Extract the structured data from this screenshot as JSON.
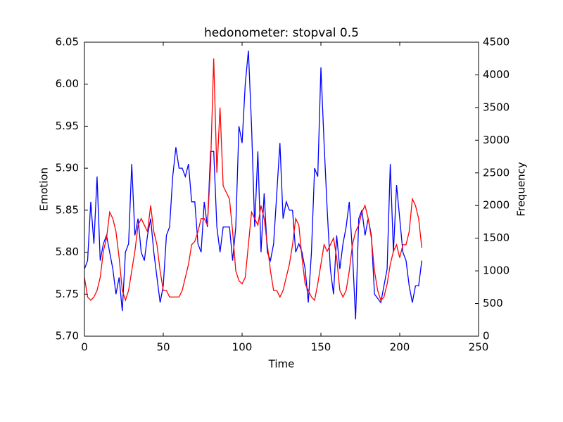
{
  "chart_data": {
    "type": "line",
    "title": "hedonometer: stopval 0.5",
    "x_label": "Time",
    "y_label": "Emotion",
    "y2_label": "Frequency",
    "x": [
      0,
      2,
      4,
      6,
      8,
      10,
      12,
      14,
      16,
      18,
      20,
      22,
      24,
      26,
      28,
      30,
      32,
      34,
      36,
      38,
      40,
      42,
      44,
      46,
      48,
      50,
      52,
      54,
      56,
      58,
      60,
      62,
      64,
      66,
      68,
      70,
      72,
      74,
      76,
      78,
      80,
      82,
      84,
      86,
      88,
      90,
      92,
      94,
      96,
      98,
      100,
      102,
      104,
      106,
      108,
      110,
      112,
      114,
      116,
      118,
      120,
      122,
      124,
      126,
      128,
      130,
      132,
      134,
      136,
      138,
      140,
      142,
      144,
      146,
      148,
      150,
      152,
      154,
      156,
      158,
      160,
      162,
      164,
      166,
      168,
      170,
      172,
      174,
      176,
      178,
      180,
      182,
      184,
      186,
      188,
      190,
      192,
      194,
      196,
      198,
      200,
      202,
      204,
      206,
      208,
      210,
      212,
      214
    ],
    "series": [
      {
        "color": "#0000ff",
        "values": [
          5.78,
          5.79,
          5.86,
          5.81,
          5.89,
          5.79,
          5.81,
          5.82,
          5.8,
          5.78,
          5.75,
          5.77,
          5.73,
          5.8,
          5.81,
          5.905,
          5.82,
          5.84,
          5.8,
          5.79,
          5.82,
          5.84,
          5.8,
          5.77,
          5.74,
          5.76,
          5.82,
          5.83,
          5.89,
          5.925,
          5.9,
          5.9,
          5.89,
          5.905,
          5.86,
          5.86,
          5.81,
          5.8,
          5.86,
          5.83,
          5.92,
          5.92,
          5.83,
          5.8,
          5.83,
          5.83,
          5.83,
          5.79,
          5.83,
          5.95,
          5.93,
          6.0,
          6.04,
          5.95,
          5.83,
          5.92,
          5.8,
          5.87,
          5.8,
          5.79,
          5.81,
          5.87,
          5.93,
          5.84,
          5.86,
          5.85,
          5.85,
          5.8,
          5.81,
          5.8,
          5.78,
          5.74,
          5.8,
          5.9,
          5.89,
          6.02,
          5.93,
          5.85,
          5.78,
          5.75,
          5.82,
          5.78,
          5.81,
          5.83,
          5.86,
          5.8,
          5.72,
          5.84,
          5.85,
          5.82,
          5.84,
          5.82,
          5.75,
          5.745,
          5.74,
          5.76,
          5.78,
          5.905,
          5.8,
          5.88,
          5.84,
          5.8,
          5.79,
          5.76,
          5.74,
          5.76,
          5.76,
          5.79
        ]
      },
      {
        "color": "#ff0000",
        "axis": "y2",
        "values": [
          900,
          600,
          550,
          600,
          700,
          900,
          1300,
          1500,
          1900,
          1800,
          1600,
          1200,
          700,
          550,
          700,
          1000,
          1300,
          1700,
          1800,
          1700,
          1600,
          2000,
          1600,
          1400,
          1000,
          700,
          700,
          600,
          600,
          600,
          600,
          700,
          900,
          1100,
          1400,
          1450,
          1600,
          1800,
          1800,
          1700,
          2600,
          4250,
          2500,
          3500,
          2300,
          2200,
          2100,
          1600,
          1000,
          850,
          800,
          900,
          1400,
          1900,
          1800,
          1700,
          2000,
          1800,
          1400,
          1000,
          700,
          700,
          600,
          700,
          900,
          1100,
          1400,
          1800,
          1700,
          1200,
          800,
          700,
          600,
          550,
          800,
          1100,
          1400,
          1300,
          1400,
          1500,
          1200,
          700,
          600,
          700,
          1000,
          1400,
          1600,
          1700,
          1900,
          2000,
          1800,
          1500,
          1000,
          700,
          550,
          600,
          800,
          1100,
          1300,
          1400,
          1200,
          1400,
          1400,
          1600,
          2100,
          2000,
          1800,
          1350
        ]
      }
    ],
    "xlim": [
      0,
      250
    ],
    "xticks": [
      0,
      50,
      100,
      150,
      200,
      250
    ],
    "ylim": [
      5.7,
      6.05
    ],
    "yticks": [
      {
        "value": 5.7,
        "label": "5.70"
      },
      5.75,
      {
        "value": 5.8,
        "label": "5.80"
      },
      5.85,
      {
        "value": 5.9,
        "label": "5.90"
      },
      5.95,
      {
        "value": 6.0,
        "label": "6.00"
      },
      6.05
    ],
    "y2lim": [
      0,
      4500
    ],
    "y2ticks": [
      0,
      500,
      1000,
      1500,
      2000,
      2500,
      3000,
      3500,
      4000,
      4500
    ]
  }
}
